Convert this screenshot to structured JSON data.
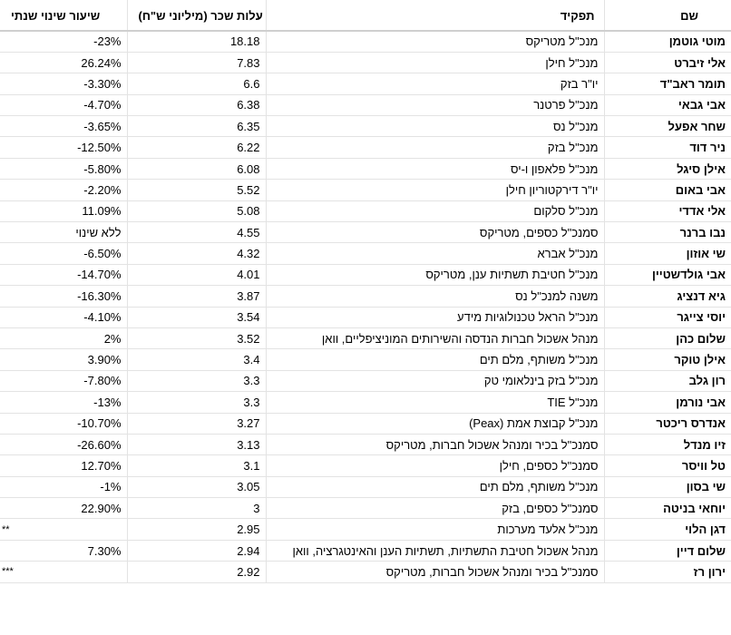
{
  "headers": {
    "change": "שיעור שינוי שנתי",
    "cost": "עלות שכר (מיליוני ש\"ח)",
    "role": "תפקיד",
    "name": "שם"
  },
  "rows": [
    {
      "name": "מוטי גוטמן",
      "role": "מנכ\"ל מטריקס",
      "cost": "18.18",
      "change": "-23%"
    },
    {
      "name": "אלי זיברט",
      "role": "מנכ\"ל חילן",
      "cost": "7.83",
      "change": "26.24%"
    },
    {
      "name": "תומר ראב\"ד",
      "role": "יו\"ר בזק",
      "cost": "6.6",
      "change": "-3.30%"
    },
    {
      "name": "אבי גבאי",
      "role": "מנכ\"ל פרטנר",
      "cost": "6.38",
      "change": "-4.70%"
    },
    {
      "name": "שחר אפעל",
      "role": "מנכ\"ל נס",
      "cost": "6.35",
      "change": "-3.65%"
    },
    {
      "name": "ניר דוד",
      "role": "מנכ\"ל בזק",
      "cost": "6.22",
      "change": "-12.50%"
    },
    {
      "name": "אילן סיגל",
      "role": "מנכ\"ל פלאפון ו-יס",
      "cost": "6.08",
      "change": "-5.80%"
    },
    {
      "name": "אבי באום",
      "role": "יו\"ר דירקטוריון חילן",
      "cost": "5.52",
      "change": "-2.20%"
    },
    {
      "name": "אלי אדדי",
      "role": "מנכ\"ל סלקום",
      "cost": "5.08",
      "change": "11.09%"
    },
    {
      "name": "נבו ברנר",
      "role": "סמנכ\"ל כספים, מטריקס",
      "cost": "4.55",
      "change": "ללא שינוי"
    },
    {
      "name": "שי אוזון",
      "role": "מנכ\"ל אברא",
      "cost": "4.32",
      "change": "-6.50%"
    },
    {
      "name": "אבי גולדשטיין",
      "role": "מנכ\"ל חטיבת תשתיות ענן, מטריקס",
      "cost": "4.01",
      "change": "-14.70%"
    },
    {
      "name": "גיא דנציג",
      "role": "משנה למנכ\"ל נס",
      "cost": "3.87",
      "change": "-16.30%"
    },
    {
      "name": "יוסי צייגר",
      "role": "מנכ\"ל הראל טכנולוגיות מידע",
      "cost": "3.54",
      "change": "-4.10%"
    },
    {
      "name": "שלום כהן",
      "role": "מנהל אשכול חברות הנדסה והשירותים המוניציפליים, וואן",
      "cost": "3.52",
      "change": "2%"
    },
    {
      "name": "אילן טוקר",
      "role": "מנכ\"ל משותף, מלם תים",
      "cost": "3.4",
      "change": "3.90%"
    },
    {
      "name": "רון גלב",
      "role": "מנכ\"ל בזק בינלאומי טק",
      "cost": "3.3",
      "change": "-7.80%"
    },
    {
      "name": "אבי נורמן",
      "role": "מנכ\"ל TIE",
      "cost": "3.3",
      "change": "-13%"
    },
    {
      "name": "אנדרס ריכטר",
      "role": "מנכ\"ל קבוצת אמת (Peax)",
      "cost": "3.27",
      "change": "-10.70%"
    },
    {
      "name": "זיו מנדל",
      "role": "סמנכ\"ל בכיר ומנהל אשכול חברות, מטריקס",
      "cost": "3.13",
      "change": "-26.60%"
    },
    {
      "name": "טל וויסר",
      "role": "סמנכ\"ל כספים, חילן",
      "cost": "3.1",
      "change": "12.70%"
    },
    {
      "name": "שי בסון",
      "role": "מנכ\"ל משותף, מלם תים",
      "cost": "3.05",
      "change": "-1%"
    },
    {
      "name": "יוחאי בניטה",
      "role": "סמנכ\"ל כספים, בזק",
      "cost": "3",
      "change": "22.90%"
    },
    {
      "name": "דגן הלוי",
      "role": "מנכ\"ל אלעד מערכות",
      "cost": "2.95",
      "change": "**"
    },
    {
      "name": "שלום דיין",
      "role": "מנהל אשכול חטיבת התשתיות, תשתיות הענן והאינטגרציה, וואן",
      "cost": "2.94",
      "change": "7.30%"
    },
    {
      "name": "ירון רז",
      "role": "סמנכ\"ל בכיר ומנהל אשכול חברות, מטריקס",
      "cost": "2.92",
      "change": "***"
    }
  ]
}
